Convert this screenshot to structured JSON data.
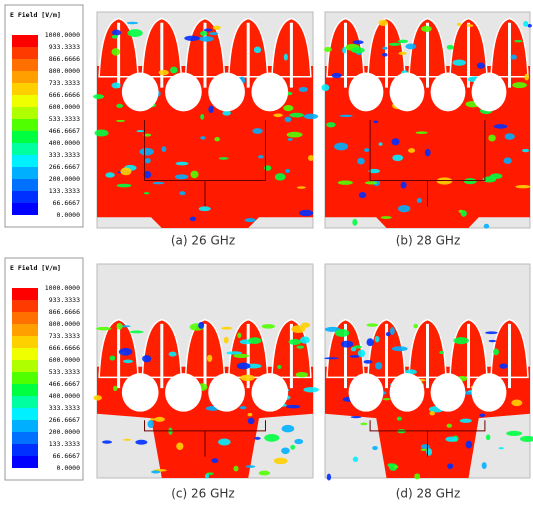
{
  "legends": [
    {
      "title": "E Field [V/m]",
      "labels": [
        "1000.0000",
        "933.3333",
        "866.6666",
        "800.0000",
        "733.3333",
        "666.6666",
        "600.0000",
        "533.3333",
        "466.6667",
        "400.0000",
        "333.3333",
        "266.6667",
        "200.0000",
        "133.3333",
        "66.6667",
        "0.0000"
      ]
    },
    {
      "title": "E Field [V/m]",
      "labels": [
        "1000.0000",
        "933.3333",
        "866.6666",
        "800.0000",
        "733.3333",
        "666.6666",
        "600.0000",
        "533.3333",
        "466.6667",
        "400.0000",
        "333.3333",
        "266.6667",
        "200.0000",
        "133.3333",
        "66.6667",
        "0.0000"
      ]
    }
  ],
  "captions": [
    "(a) 26 GHz",
    "(b) 28 GHz",
    "(c) 26 GHz",
    "(d) 28 GHz"
  ]
}
